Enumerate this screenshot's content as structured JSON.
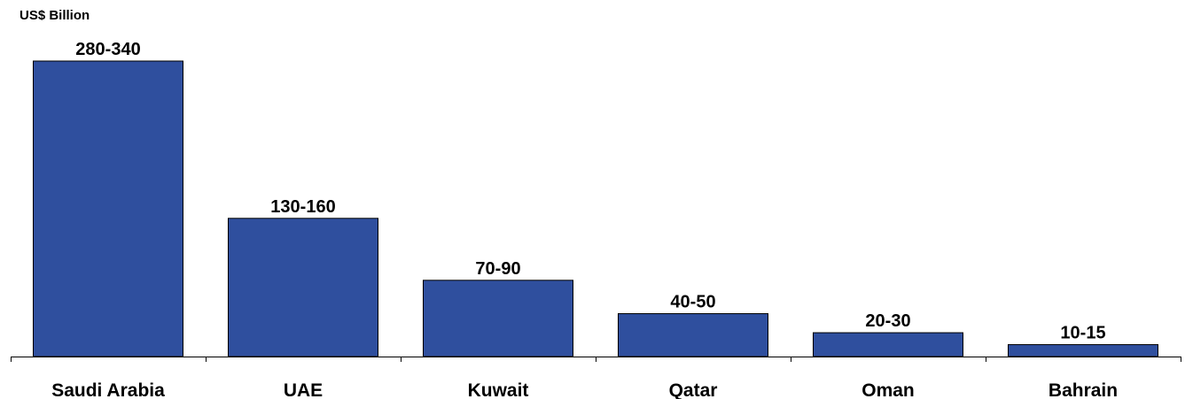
{
  "chart_data": {
    "type": "bar",
    "unit_label": "US$ Billion",
    "categories": [
      "Saudi Arabia",
      "UAE",
      "Kuwait",
      "Qatar",
      "Oman",
      "Bahrain"
    ],
    "values": [
      310,
      145,
      80,
      45,
      25,
      12.5
    ],
    "value_labels": [
      "280-340",
      "130-160",
      "70-90",
      "40-50",
      "20-30",
      "10-15"
    ],
    "ylim": [
      0,
      310
    ],
    "grid": false,
    "legend": "none",
    "colors": {
      "bar_fill": "#2f4f9e",
      "bar_stroke": "#000000",
      "axis": "#000000",
      "text": "#000000"
    }
  }
}
